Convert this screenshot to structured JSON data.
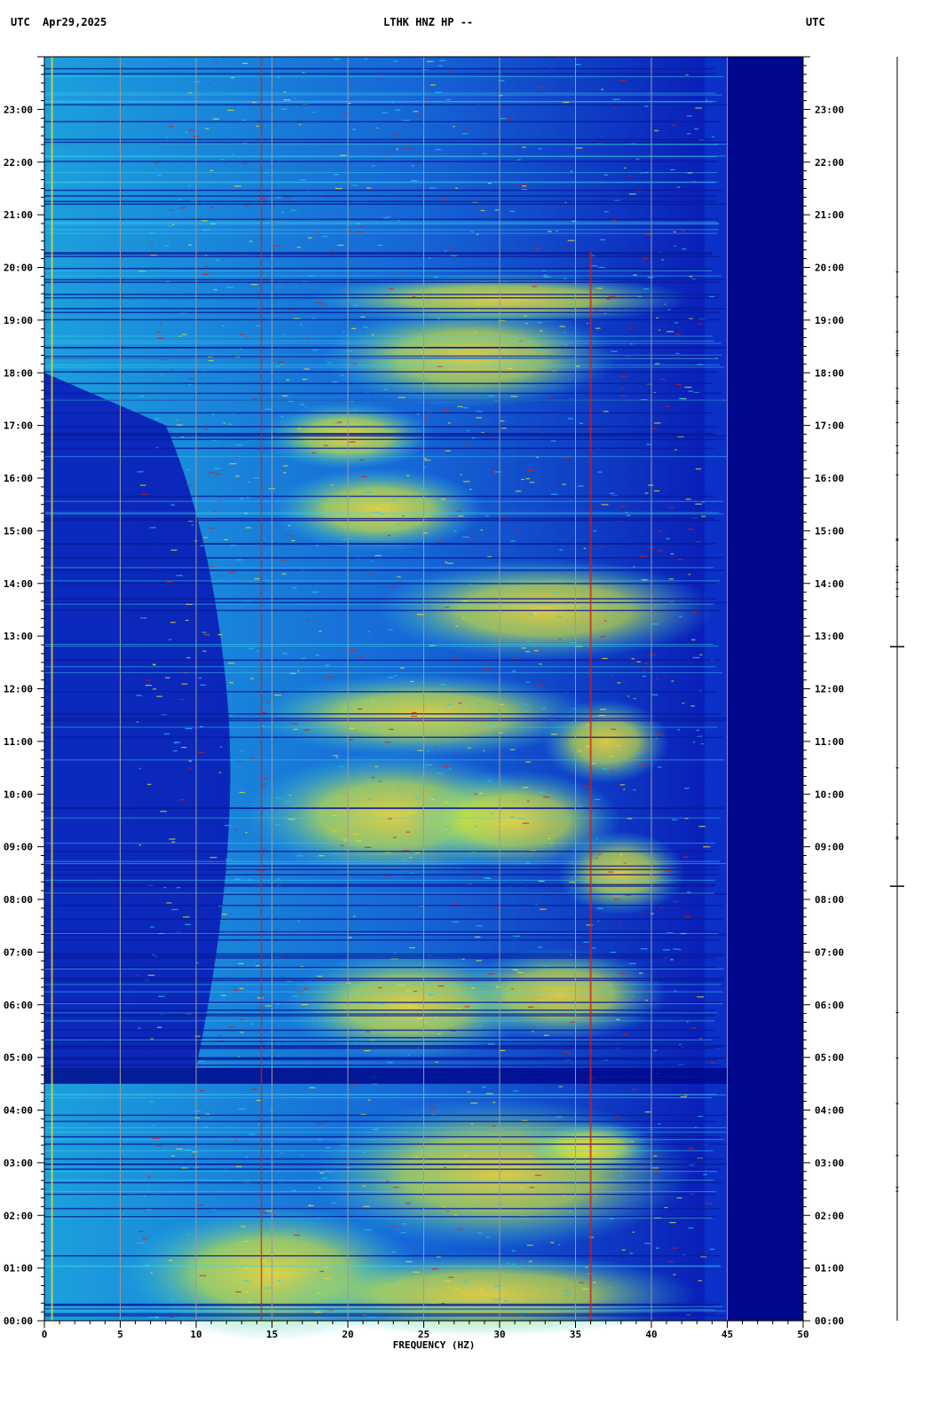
{
  "header": {
    "left_tz": "UTC",
    "date": "Apr29,2025",
    "station": "LTHK HNZ HP --",
    "right_tz": "UTC"
  },
  "colors": {
    "background_blue": "#0a1fb8",
    "dark_blue": "#00088c",
    "cyan": "#22c8e8",
    "yellow_green": "#c8e640",
    "red": "#d81e10",
    "grid": "#9a9a9a"
  },
  "chart_data": {
    "type": "heatmap",
    "title": "LTHK HNZ HP --",
    "xlabel": "FREQUENCY (HZ)",
    "ylabel": "UTC",
    "xlim": [
      0,
      50
    ],
    "ylim": [
      0,
      24
    ],
    "x_ticks": [
      0,
      5,
      10,
      15,
      20,
      25,
      30,
      35,
      40,
      45,
      50
    ],
    "x_tick_labels": [
      "0",
      "5",
      "10",
      "15",
      "20",
      "25",
      "30",
      "35",
      "40",
      "45",
      "50"
    ],
    "y_ticks_hours": [
      0,
      1,
      2,
      3,
      4,
      5,
      6,
      7,
      8,
      9,
      10,
      11,
      12,
      13,
      14,
      15,
      16,
      17,
      18,
      19,
      20,
      21,
      22,
      23
    ],
    "y_tick_labels": [
      "00:00",
      "01:00",
      "02:00",
      "03:00",
      "04:00",
      "05:00",
      "06:00",
      "07:00",
      "08:00",
      "09:00",
      "10:00",
      "11:00",
      "12:00",
      "13:00",
      "14:00",
      "15:00",
      "16:00",
      "17:00",
      "18:00",
      "19:00",
      "20:00",
      "21:00",
      "22:00",
      "23:00"
    ],
    "grid": true,
    "energy_cutoff_hz": 45,
    "persistent_lines_hz": [
      0.5,
      14.3,
      36
    ],
    "high_energy_band_hz": [
      12,
      42
    ],
    "quiet_band_hours": [
      4.5,
      4.8
    ]
  }
}
